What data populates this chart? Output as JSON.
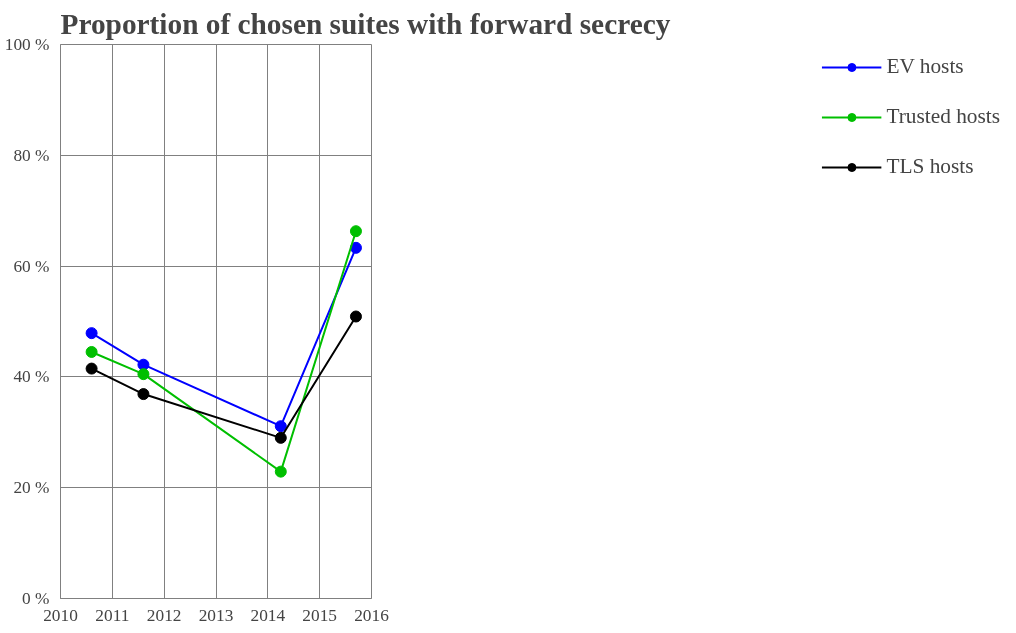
{
  "chart_data": {
    "type": "line",
    "title": "Proportion of chosen suites with forward secrecy",
    "x": [
      2010.6,
      2011.6,
      2014.25,
      2015.7
    ],
    "series": [
      {
        "name": "EV hosts",
        "color": "#0000ff",
        "values": [
          47.9,
          42.2,
          31.1,
          63.3
        ]
      },
      {
        "name": "Trusted hosts",
        "color": "#00bf00",
        "values": [
          44.5,
          40.5,
          22.9,
          66.3
        ]
      },
      {
        "name": "TLS hosts",
        "color": "#000000",
        "values": [
          41.5,
          36.9,
          29.0,
          50.9
        ]
      }
    ],
    "xlim": [
      2010,
      2016
    ],
    "xticks": [
      2010,
      2011,
      2012,
      2013,
      2014,
      2015,
      2016
    ],
    "ylim": [
      0,
      100
    ],
    "yticks": [
      {
        "value": 0,
        "label": "0 %"
      },
      {
        "value": 20,
        "label": "20 %"
      },
      {
        "value": 40,
        "label": "40 %"
      },
      {
        "value": 60,
        "label": "60 %"
      },
      {
        "value": 80,
        "label": "80 %"
      },
      {
        "value": 100,
        "label": "100 %"
      }
    ],
    "grid": true,
    "legend": "right",
    "marker": "circle",
    "line_style": "solid"
  }
}
